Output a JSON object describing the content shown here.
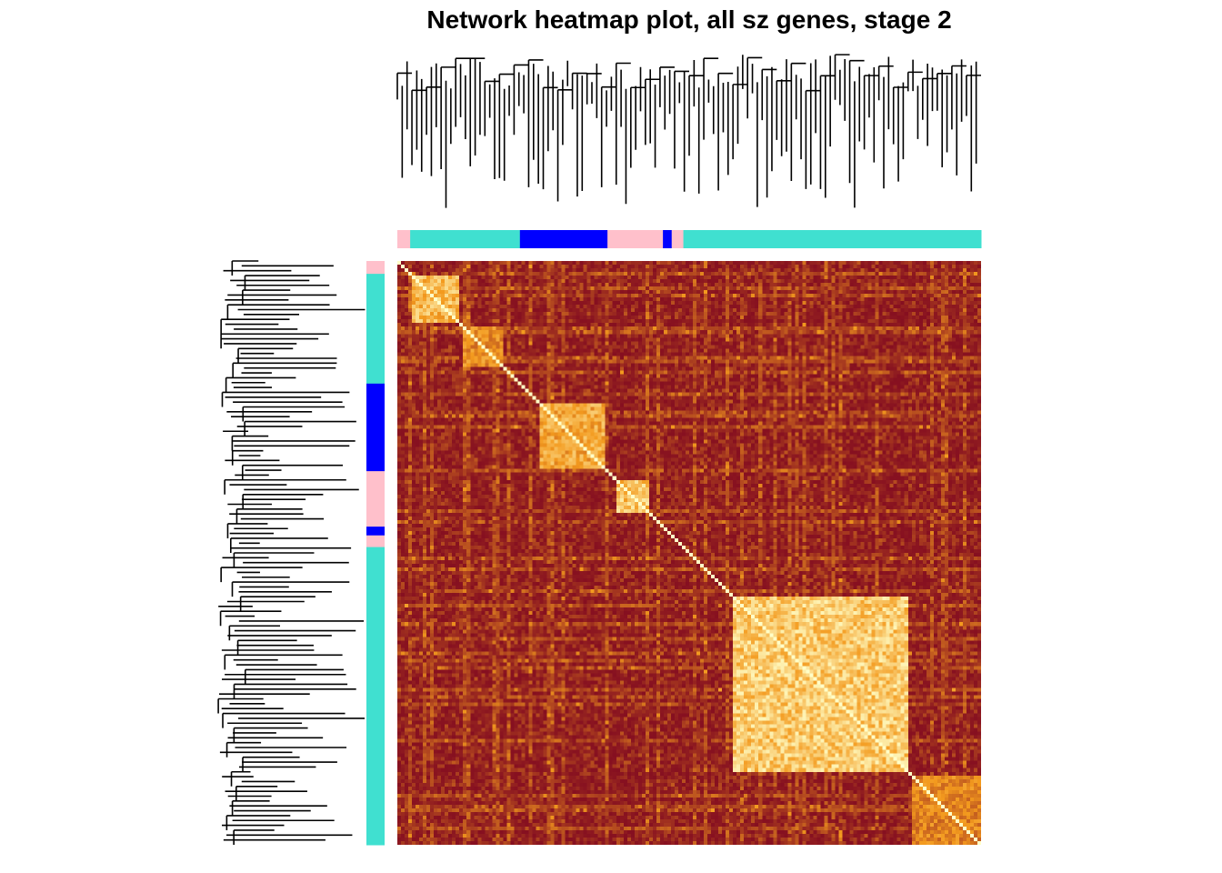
{
  "title": "Network heatmap plot, all sz genes, stage  2",
  "chart_data": {
    "type": "heatmap",
    "title": "Network heatmap plot, all sz genes, stage  2",
    "description_of_axes": "genes ordered by hierarchical clustering on both axes; no tick labels shown",
    "module_order": [
      "pink",
      "turquoise",
      "blue",
      "pink",
      "blue",
      "pink",
      "turquoise"
    ],
    "module_segments": [
      {
        "module": "pink",
        "start": 0.0,
        "end": 0.022
      },
      {
        "module": "turquoise",
        "start": 0.022,
        "end": 0.21
      },
      {
        "module": "blue",
        "start": 0.21,
        "end": 0.36
      },
      {
        "module": "pink",
        "start": 0.36,
        "end": 0.455
      },
      {
        "module": "blue",
        "start": 0.455,
        "end": 0.47
      },
      {
        "module": "pink",
        "start": 0.47,
        "end": 0.49
      },
      {
        "module": "turquoise",
        "start": 0.49,
        "end": 1.0
      }
    ],
    "clusters": [
      {
        "start": 0.02,
        "end": 0.1,
        "strength": 0.85
      },
      {
        "start": 0.11,
        "end": 0.18,
        "strength": 0.6
      },
      {
        "start": 0.24,
        "end": 0.35,
        "strength": 0.75
      },
      {
        "start": 0.37,
        "end": 0.43,
        "strength": 0.9
      },
      {
        "start": 0.57,
        "end": 0.87,
        "strength": 0.95
      },
      {
        "start": 0.88,
        "end": 1.0,
        "strength": 0.55
      }
    ],
    "module_colors": {
      "turquoise": "#40E0D0",
      "blue": "#0000FF",
      "pink": "#FFC0CB"
    },
    "color_scale": {
      "low": "#7A0020",
      "mid": "#F39A1E",
      "high": "#FFFFC8"
    },
    "legend": "none"
  }
}
